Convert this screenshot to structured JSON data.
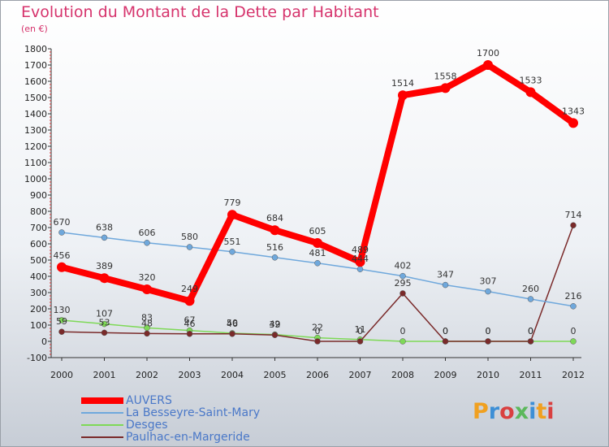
{
  "title": "Evolution du Montant de la Dette par Habitant",
  "subtitle": "(en €)",
  "logo_text": "Proxiti",
  "chart_data": {
    "type": "line",
    "title": "Evolution du Montant de la Dette par Habitant",
    "subtitle": "(en €)",
    "xlabel": "",
    "ylabel": "",
    "categories": [
      "2000",
      "2001",
      "2002",
      "2003",
      "2004",
      "2005",
      "2006",
      "2007",
      "2008",
      "2009",
      "2010",
      "2011",
      "2012"
    ],
    "ylim": [
      -100,
      1800
    ],
    "yticks": [
      -100,
      0,
      100,
      200,
      300,
      400,
      500,
      600,
      700,
      800,
      900,
      1000,
      1100,
      1200,
      1300,
      1400,
      1500,
      1600,
      1700,
      1800
    ],
    "grid": false,
    "legend_position": "bottom-left",
    "series": [
      {
        "name": "AUVERS",
        "color": "#ff0000",
        "values": [
          456,
          389,
          320,
          249,
          779,
          684,
          605,
          489,
          1514,
          1558,
          1700,
          1533,
          1343
        ]
      },
      {
        "name": "La Besseyre-Saint-Mary",
        "color": "#6fa8dc",
        "values": [
          670,
          638,
          606,
          580,
          551,
          516,
          481,
          444,
          402,
          347,
          307,
          260,
          216
        ]
      },
      {
        "name": "Desges",
        "color": "#7ed957",
        "values": [
          130,
          107,
          83,
          67,
          50,
          42,
          22,
          11,
          0,
          0,
          0,
          0,
          0
        ]
      },
      {
        "name": "Paulhac-en-Margeride",
        "color": "#7a2a2a",
        "values": [
          59,
          53,
          48,
          46,
          46,
          39,
          0,
          0,
          295,
          0,
          0,
          0,
          714
        ]
      }
    ]
  }
}
